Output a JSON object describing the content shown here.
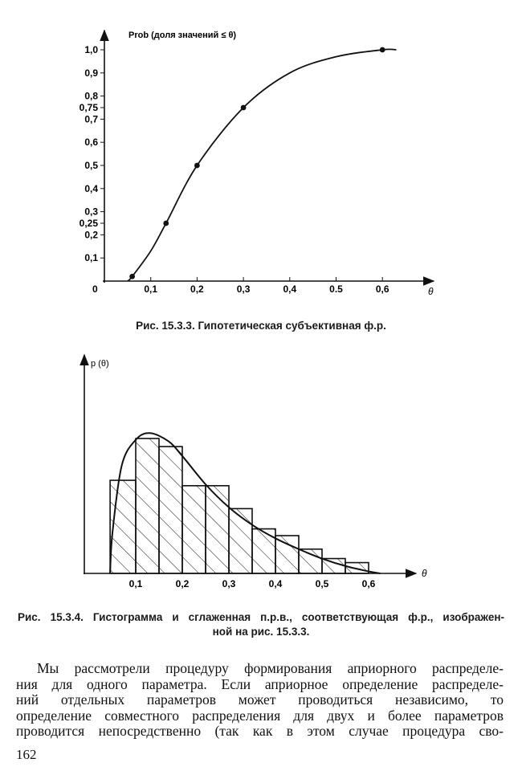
{
  "chart_data": [
    {
      "type": "line",
      "title": "Рис. 15.3.3. Гипотетическая субъективная ф.р.",
      "ylabel": "Prob (доля значений ≤ θ)",
      "xlabel": "θ",
      "origin_label": "0",
      "xlim": [
        0,
        0.68
      ],
      "ylim": [
        0,
        1.07
      ],
      "x_ticks": [
        0.1,
        0.2,
        0.3,
        0.4,
        0.5,
        0.6
      ],
      "x_tick_labels": [
        "0,1",
        "0,2",
        "0,3",
        "0,4",
        "0.5",
        "0,6"
      ],
      "y_ticks": [
        0.1,
        0.2,
        0.25,
        0.3,
        0.4,
        0.5,
        0.6,
        0.7,
        0.75,
        0.8,
        0.9,
        1.0
      ],
      "y_tick_labels": [
        "0,1",
        "0,2",
        "0,25",
        "0,3",
        "0,4",
        "0,5",
        "0,6",
        "0,7",
        "0,75",
        "0,8",
        "0,9",
        "1,0"
      ],
      "grid": false,
      "series": [
        {
          "name": "curve",
          "x": [
            0.05,
            0.06,
            0.1,
            0.133,
            0.2,
            0.3,
            0.4,
            0.5,
            0.6,
            0.63
          ],
          "y": [
            0,
            0.02,
            0.13,
            0.25,
            0.5,
            0.75,
            0.9,
            0.97,
            1.0,
            1.0
          ]
        },
        {
          "name": "points",
          "x": [
            0.06,
            0.133,
            0.2,
            0.3,
            0.6
          ],
          "y": [
            0.02,
            0.25,
            0.5,
            0.75,
            1.0
          ]
        }
      ]
    },
    {
      "type": "bar",
      "title": "Рис. 15.3.4. Гистограмма и сглаженная п.р.в., соответствующая ф.р., изображенной на рис. 15.3.3.",
      "ylabel": "p (θ)",
      "xlabel": "θ",
      "xlim": [
        0,
        0.74
      ],
      "ylim": [
        0,
        16.2
      ],
      "x_ticks": [
        0.1,
        0.2,
        0.3,
        0.4,
        0.5,
        0.6
      ],
      "x_tick_labels": [
        "0,1",
        "0,2",
        "0,3",
        "0,4",
        "0,5",
        "0,6"
      ],
      "grid": false,
      "bins": [
        [
          0.045,
          0.1
        ],
        [
          0.1,
          0.15
        ],
        [
          0.15,
          0.2
        ],
        [
          0.2,
          0.25
        ],
        [
          0.25,
          0.3
        ],
        [
          0.3,
          0.35
        ],
        [
          0.35,
          0.4
        ],
        [
          0.4,
          0.45
        ],
        [
          0.45,
          0.5
        ],
        [
          0.5,
          0.55
        ],
        [
          0.55,
          0.6
        ]
      ],
      "values": [
        6.9,
        10.0,
        9.4,
        6.5,
        6.5,
        4.8,
        3.3,
        2.8,
        1.8,
        1.1,
        0.8
      ],
      "smoothed": {
        "x": [
          0.045,
          0.05,
          0.07,
          0.1,
          0.13,
          0.17,
          0.2,
          0.25,
          0.3,
          0.35,
          0.4,
          0.45,
          0.5,
          0.55,
          0.6,
          0.625
        ],
        "y": [
          0,
          3,
          8,
          9.9,
          10.4,
          9.8,
          8.7,
          6.6,
          4.9,
          3.6,
          2.6,
          1.8,
          1.1,
          0.55,
          0.15,
          0
        ]
      }
    }
  ],
  "caption1": "Рис. 15.3.3. Гипотетическая субъективная ф.р.",
  "caption2": {
    "line1": "Рис. 15.3.4. Гистограмма и сглаженная п.р.в., соответствующая ф.р., изображен-",
    "line2": "ной на рис. 15.3.3."
  },
  "paragraph": [
    "Мы рассмотрели процедуру формирования априорного распределе-",
    "ния для одного параметра. Если априорное определение распределе-",
    "ний отдельных параметров может проводиться независимо, то",
    "определение совместного распределения для двух и более параметров",
    "проводится непосредственно (так как в этом случае процедура сво-"
  ],
  "page_number": "162"
}
